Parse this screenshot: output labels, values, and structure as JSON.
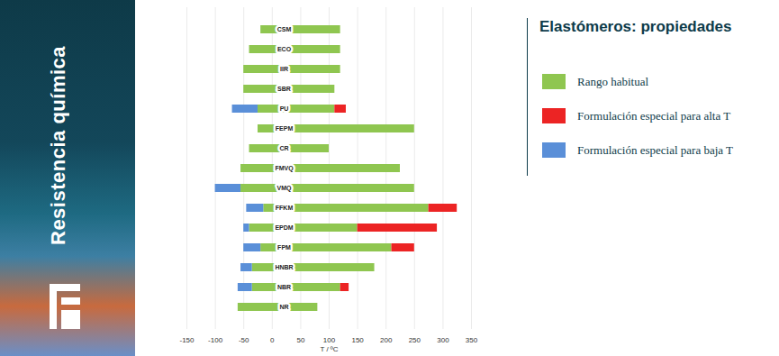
{
  "chart_data": {
    "type": "bar",
    "orientation": "horizontal",
    "title": "Elastómeros: propiedades",
    "x_label": "T / ºC",
    "categories": [
      "CSM",
      "ECO",
      "IIR",
      "SBR",
      "PU",
      "FEPM",
      "CR",
      "FMVQ",
      "VMQ",
      "FFKM",
      "EPDM",
      "FPM",
      "HNBR",
      "NBR",
      "NR"
    ],
    "series": [
      {
        "name": "Rango habitual",
        "color": "#8fc650",
        "values": [
          [
            -20,
            120
          ],
          [
            -40,
            120
          ],
          [
            -50,
            120
          ],
          [
            -50,
            110
          ],
          [
            -25,
            110
          ],
          [
            -25,
            250
          ],
          [
            -40,
            100
          ],
          [
            -55,
            225
          ],
          [
            -55,
            250
          ],
          [
            -15,
            275
          ],
          [
            -40,
            150
          ],
          [
            -20,
            210
          ],
          [
            -35,
            180
          ],
          [
            -35,
            120
          ],
          [
            -60,
            80
          ]
        ]
      },
      {
        "name": "Formulación especial para alta T",
        "color": "#ec2424",
        "values": [
          null,
          null,
          null,
          null,
          [
            110,
            130
          ],
          null,
          null,
          null,
          null,
          [
            275,
            325
          ],
          [
            150,
            290
          ],
          [
            210,
            250
          ],
          null,
          [
            120,
            135
          ],
          null
        ]
      },
      {
        "name": "Formulación especial para baja T",
        "color": "#5a8fd8",
        "values": [
          null,
          null,
          null,
          null,
          [
            -70,
            -25
          ],
          null,
          null,
          null,
          [
            -100,
            -55
          ],
          [
            -45,
            -15
          ],
          [
            -50,
            -40
          ],
          [
            -50,
            -20
          ],
          [
            -55,
            -35
          ],
          [
            -60,
            -35
          ],
          null
        ]
      }
    ],
    "xlim": [
      -150,
      350
    ],
    "xticks": [
      -150,
      -100,
      -50,
      0,
      50,
      100,
      150,
      200,
      250,
      300,
      350
    ],
    "grid": true,
    "legend": "right"
  },
  "sidebar": {
    "text": "Resistencia química"
  }
}
